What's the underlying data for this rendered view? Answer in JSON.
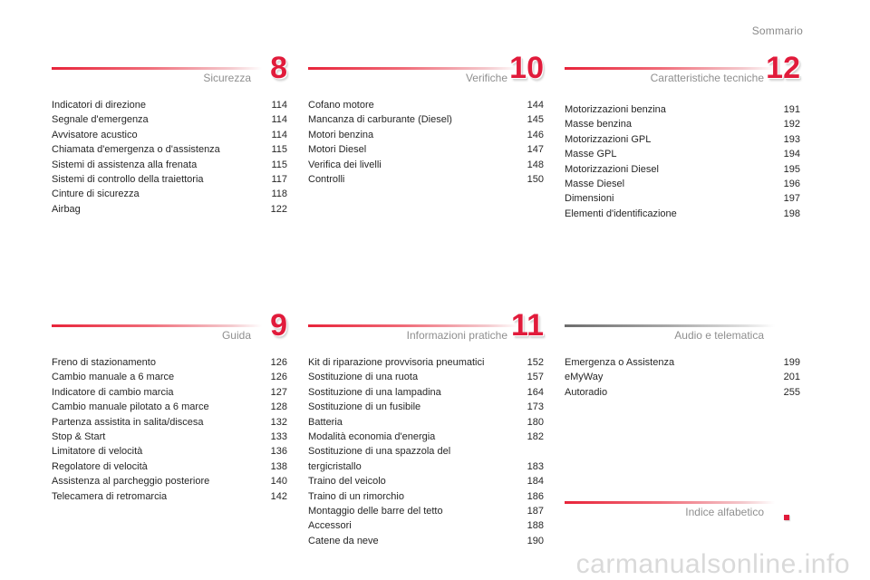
{
  "header": {
    "title": "Sommario"
  },
  "sections": {
    "sicurezza": {
      "title": "Sicurezza",
      "number": "8",
      "entries": [
        {
          "label": "Indicatori di direzione",
          "page": "114"
        },
        {
          "label": "Segnale d'emergenza",
          "page": "114"
        },
        {
          "label": "Avvisatore acustico",
          "page": "114"
        },
        {
          "label": "Chiamata d'emergenza o d'assistenza",
          "page": "115"
        },
        {
          "label": "Sistemi di assistenza alla frenata",
          "page": "115"
        },
        {
          "label": "Sistemi di controllo della traiettoria",
          "page": "117"
        },
        {
          "label": "Cinture di sicurezza",
          "page": "118"
        },
        {
          "label": "Airbag",
          "page": "122"
        }
      ]
    },
    "verifiche": {
      "title": "Verifiche",
      "number": "10",
      "entries": [
        {
          "label": "Cofano motore",
          "page": "144"
        },
        {
          "label": "Mancanza di carburante (Diesel)",
          "page": "145"
        },
        {
          "label": "Motori benzina",
          "page": "146"
        },
        {
          "label": "Motori Diesel",
          "page": "147"
        },
        {
          "label": "Verifica dei livelli",
          "page": "148"
        },
        {
          "label": "Controlli",
          "page": "150"
        }
      ]
    },
    "caratteristiche": {
      "title": "Caratteristiche tecniche",
      "number": "12",
      "entries": [
        {
          "label": "Motorizzazioni benzina",
          "page": "191"
        },
        {
          "label": "Masse benzina",
          "page": "192"
        },
        {
          "label": "Motorizzazioni GPL",
          "page": "193"
        },
        {
          "label": "Masse GPL",
          "page": "194"
        },
        {
          "label": "Motorizzazioni Diesel",
          "page": "195"
        },
        {
          "label": "Masse Diesel",
          "page": "196"
        },
        {
          "label": "Dimensioni",
          "page": "197"
        },
        {
          "label": "Elementi d'identificazione",
          "page": "198"
        }
      ]
    },
    "guida": {
      "title": "Guida",
      "number": "9",
      "entries": [
        {
          "label": "Freno di stazionamento",
          "page": "126"
        },
        {
          "label": "Cambio manuale a 6 marce",
          "page": "126"
        },
        {
          "label": "Indicatore di cambio marcia",
          "page": "127"
        },
        {
          "label": "Cambio manuale pilotato a 6 marce",
          "page": "128"
        },
        {
          "label": "Partenza assistita in salita/discesa",
          "page": "132"
        },
        {
          "label": "Stop & Start",
          "page": "133"
        },
        {
          "label": "Limitatore di velocità",
          "page": "136"
        },
        {
          "label": "Regolatore di velocità",
          "page": "138"
        },
        {
          "label": "Assistenza al parcheggio posteriore",
          "page": "140"
        },
        {
          "label": "Telecamera di retromarcia",
          "page": "142"
        }
      ]
    },
    "informazioni": {
      "title": "Informazioni pratiche",
      "number": "11",
      "entries": [
        {
          "label": "Kit di riparazione provvisoria pneumatici",
          "page": "152"
        },
        {
          "label": "Sostituzione di una ruota",
          "page": "157"
        },
        {
          "label": "Sostituzione di una lampadina",
          "page": "164"
        },
        {
          "label": "Sostituzione di un fusibile",
          "page": "173"
        },
        {
          "label": "Batteria",
          "page": "180"
        },
        {
          "label": "Modalità economia d'energia",
          "page": "182"
        },
        {
          "label": "Sostituzione di una spazzola del\n   tergicristallo",
          "page": "183"
        },
        {
          "label": "Traino del veicolo",
          "page": "184"
        },
        {
          "label": "Traino di un rimorchio",
          "page": "186"
        },
        {
          "label": "Montaggio delle barre del tetto",
          "page": "187"
        },
        {
          "label": "Accessori",
          "page": "188"
        },
        {
          "label": "Catene da neve",
          "page": "190"
        }
      ]
    },
    "audio": {
      "title": "Audio e telematica",
      "entries": [
        {
          "label": "Emergenza o Assistenza",
          "page": "199"
        },
        {
          "label": "eMyWay",
          "page": "201"
        },
        {
          "label": "Autoradio",
          "page": "255"
        }
      ]
    },
    "indice": {
      "title": "Indice alfabetico"
    }
  },
  "watermark": "carmanualsonline.info",
  "colors": {
    "accent": "#e11b3b",
    "muted_text": "#8f8f8f"
  }
}
